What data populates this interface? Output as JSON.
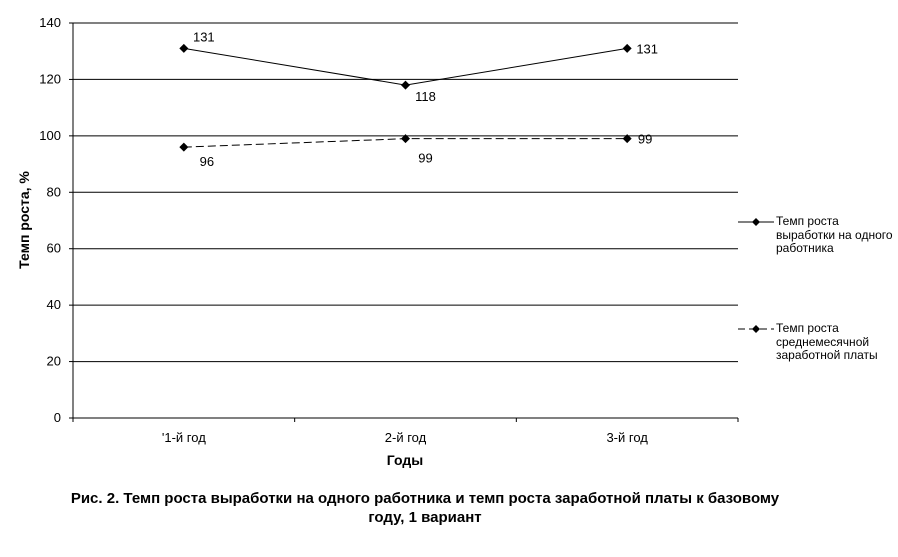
{
  "chart_data": {
    "type": "line",
    "categories": [
      "'1-й год",
      "2-й год",
      "3-й год"
    ],
    "series": [
      {
        "name": "Темп роста выработки на одного работника",
        "values": [
          131,
          118,
          131
        ],
        "data_labels": [
          "131",
          "118",
          "131"
        ],
        "line_style": "solid",
        "marker": "diamond",
        "color": "#000000"
      },
      {
        "name": "Темп роста среднемесячной заработной платы",
        "values": [
          96,
          99,
          99
        ],
        "data_labels": [
          "96",
          "99",
          "99"
        ],
        "line_style": "dashed",
        "marker": "diamond",
        "color": "#000000"
      }
    ],
    "xlabel": "Годы",
    "ylabel": "Темп роста, %",
    "ylim": [
      0,
      140
    ],
    "yticks": [
      "0",
      "20",
      "40",
      "60",
      "80",
      "100",
      "120",
      "140"
    ],
    "grid": "horizontal",
    "legend_position": "right"
  },
  "caption": {
    "line1": "Рис. 2. Темп роста выработки на одного работника и темп роста заработной платы к базовому",
    "line2": "году, 1 вариант"
  }
}
